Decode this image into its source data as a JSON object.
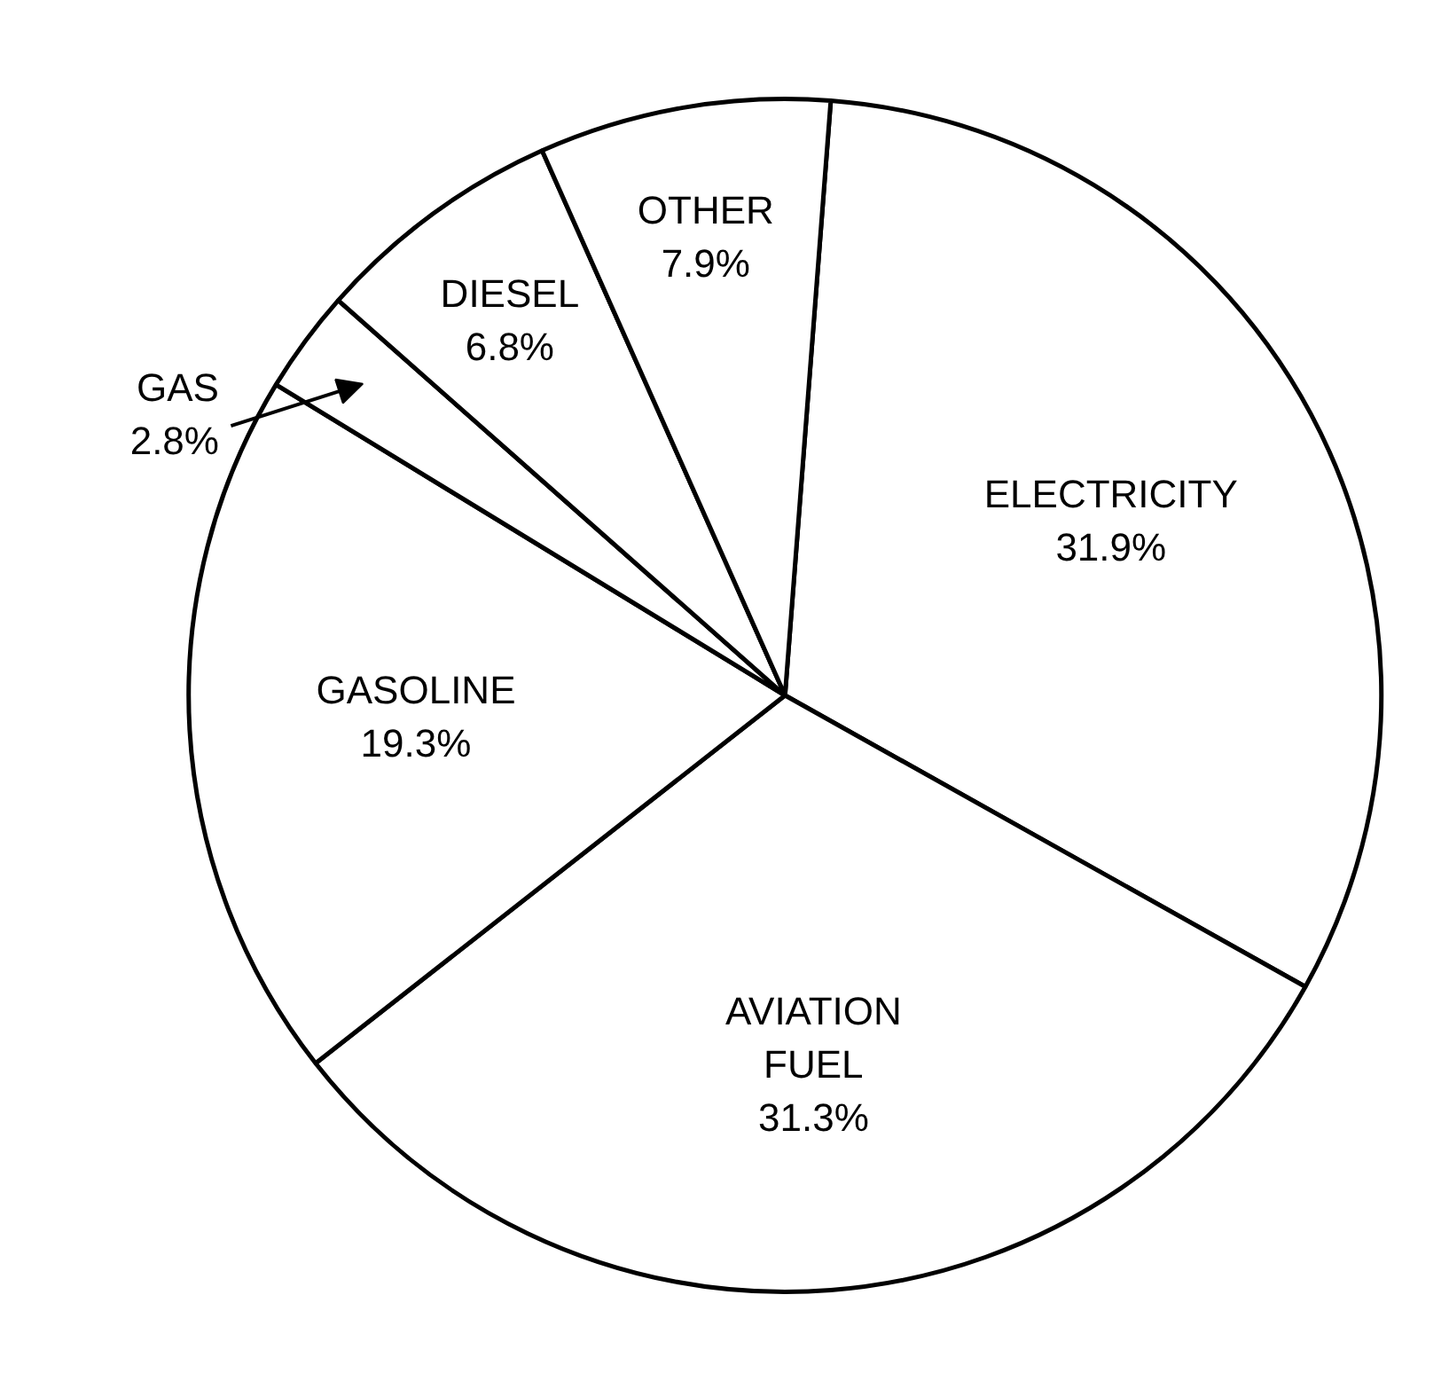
{
  "chart_data": {
    "type": "pie",
    "categories": [
      "ELECTRICITY",
      "AVIATION FUEL",
      "GASOLINE",
      "GAS",
      "DIESEL",
      "OTHER"
    ],
    "values": [
      31.9,
      31.3,
      19.3,
      2.8,
      6.8,
      7.9
    ],
    "colors": [
      "#ffffff",
      "#ffffff",
      "#ffffff",
      "#ffffff",
      "#ffffff",
      "#ffffff"
    ],
    "value_labels": [
      "31.9%",
      "31.3%",
      "19.3%",
      "2.8%",
      "6.8%",
      "7.9%"
    ]
  }
}
